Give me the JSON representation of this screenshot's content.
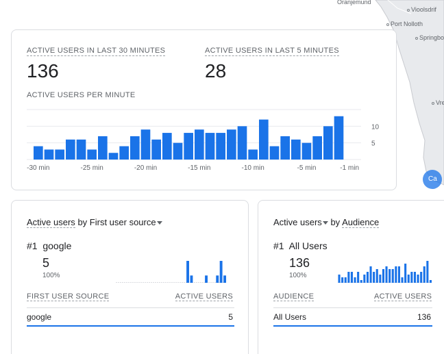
{
  "map": {
    "places": [
      "Oranjemund",
      "Vioolsdrif",
      "Port Nolloth",
      "Springbok",
      "Vre"
    ],
    "marker_label": "Ca",
    "land_color": "#e8eaed",
    "sea_color": "#ffffff"
  },
  "top_card": {
    "metric1_title": "ACTIVE USERS IN LAST 30 MINUTES",
    "metric1_value": "136",
    "metric2_title": "ACTIVE USERS IN LAST 5 MINUTES",
    "metric2_value": "28",
    "chart_title": "ACTIVE USERS PER MINUTE"
  },
  "chart_data": {
    "type": "bar",
    "x": [
      -30,
      -29,
      -28,
      -27,
      -26,
      -25,
      -24,
      -23,
      -22,
      -21,
      -20,
      -19,
      -18,
      -17,
      -16,
      -15,
      -14,
      -13,
      -12,
      -11,
      -10,
      -9,
      -8,
      -7,
      -6,
      -5,
      -4,
      -3,
      -2,
      -1
    ],
    "values": [
      4,
      3,
      3,
      6,
      6,
      3,
      7,
      2,
      4,
      7,
      9,
      6,
      8,
      5,
      8,
      9,
      8,
      8,
      9,
      10,
      3,
      12,
      4,
      7,
      6,
      5,
      7,
      10,
      13,
      0
    ],
    "x_tick_labels": [
      "-30 min",
      "-25 min",
      "-20 min",
      "-15 min",
      "-10 min",
      "-5 min",
      "-1 min"
    ],
    "y_tick_labels": [
      "10",
      "5"
    ],
    "y_ticks": [
      10,
      5
    ],
    "ylim": [
      0,
      15
    ],
    "bar_color": "#1a73e8",
    "grid": true
  },
  "left_card": {
    "metric_label": "Active users",
    "by_label": "by",
    "dimension_label": "First user source",
    "rank": "#1",
    "top_item": "google",
    "top_value": "5",
    "top_pct": "100%",
    "col1": "FIRST USER SOURCE",
    "col2": "ACTIVE USERS",
    "rows": [
      {
        "name": "google",
        "value": "5"
      }
    ],
    "sparkline": [
      0,
      0,
      0,
      0,
      0,
      0,
      0,
      0,
      0,
      0,
      0,
      0,
      0,
      0,
      0,
      0,
      0,
      0,
      0,
      3,
      1,
      0,
      0,
      0,
      1,
      0,
      0,
      1,
      3,
      1
    ]
  },
  "right_card": {
    "metric_label": "Active users",
    "by_label": "by",
    "dimension_label": "Audience",
    "rank": "#1",
    "top_item": "All Users",
    "top_value": "136",
    "top_pct": "100%",
    "col1": "AUDIENCE",
    "col2": "ACTIVE USERS",
    "rows": [
      {
        "name": "All Users",
        "value": "136"
      }
    ],
    "sparkline": [
      3,
      2,
      2,
      4,
      4,
      2,
      4,
      1,
      3,
      4,
      6,
      4,
      5,
      3,
      5,
      6,
      5,
      5,
      6,
      6,
      2,
      7,
      3,
      4,
      4,
      3,
      4,
      6,
      8,
      1
    ]
  }
}
